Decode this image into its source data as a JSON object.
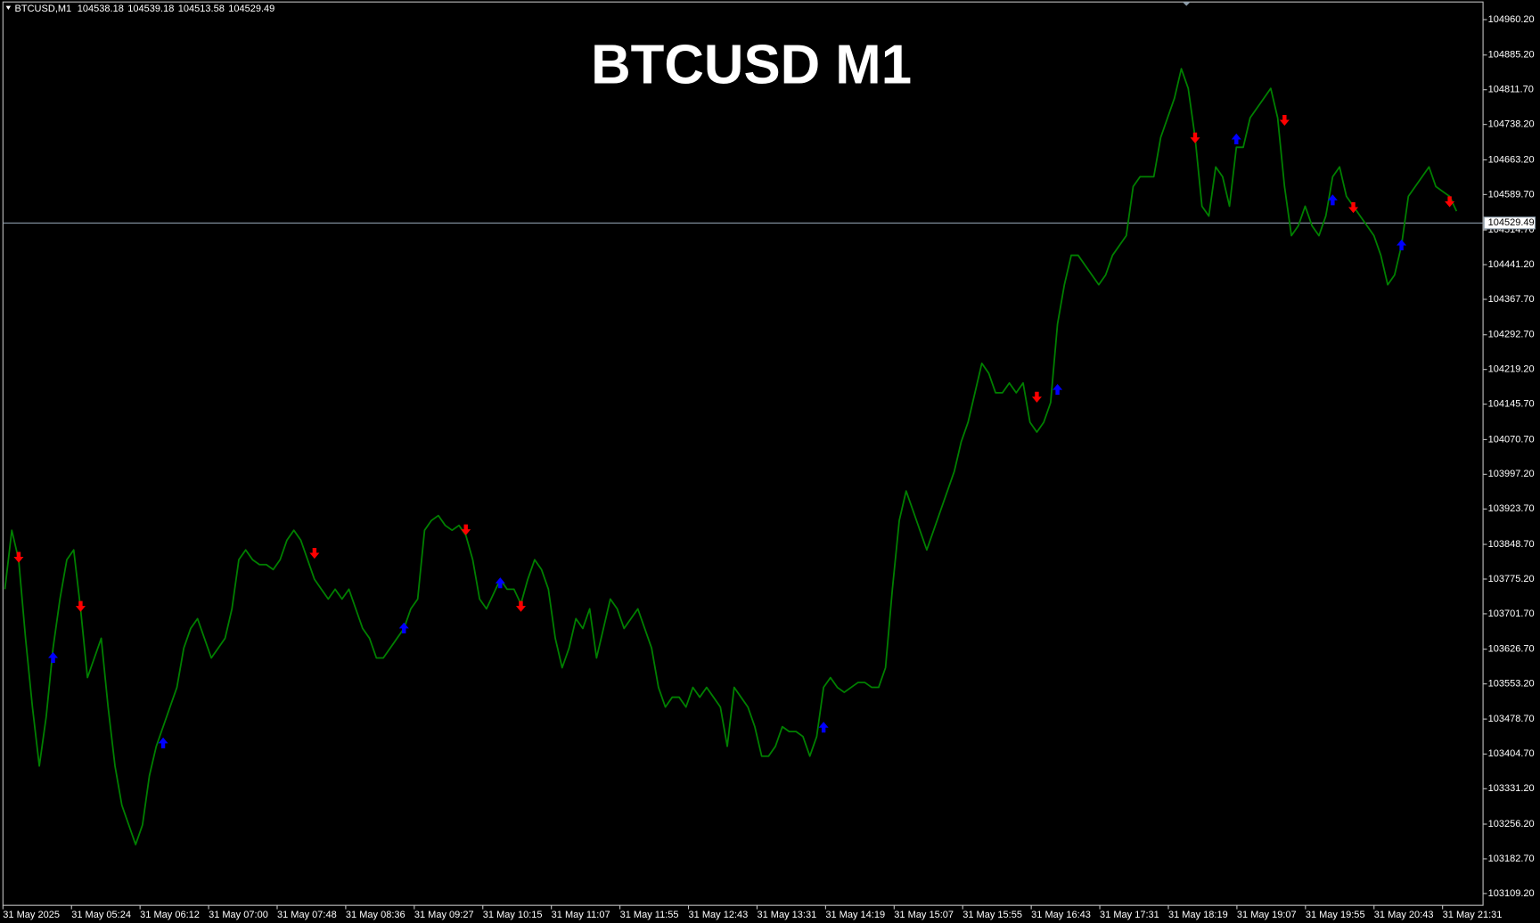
{
  "chart_data": {
    "type": "line",
    "title": "BTCUSD M1",
    "header": {
      "symbol": "BTCUSD,M1",
      "ohlc": [
        104538.18,
        104539.18,
        104513.58,
        104529.49
      ]
    },
    "last_price": 104529.49,
    "color": "#008000",
    "background": "#000000",
    "xtick_labels": [
      "31 May 2025",
      "31 May 05:24",
      "31 May 06:12",
      "31 May 07:00",
      "31 May 07:48",
      "31 May 08:36",
      "31 May 09:27",
      "31 May 10:15",
      "31 May 11:07",
      "31 May 11:55",
      "31 May 12:43",
      "31 May 13:31",
      "31 May 14:19",
      "31 May 15:07",
      "31 May 15:55",
      "31 May 16:43",
      "31 May 17:31",
      "31 May 18:19",
      "31 May 19:07",
      "31 May 19:55",
      "31 May 20:43",
      "31 May 21:31"
    ],
    "ylim": [
      103084.2,
      104997.6
    ],
    "yticks": [
      {
        "value": 104960.2,
        "label": "104960.20"
      },
      {
        "value": 104885.2,
        "label": "104885.20"
      },
      {
        "value": 104811.7,
        "label": "104811.70"
      },
      {
        "value": 104738.2,
        "label": "104738.20"
      },
      {
        "value": 104663.2,
        "label": "104663.20"
      },
      {
        "value": 104589.7,
        "label": "104589.70"
      },
      {
        "value": 104514.7,
        "label": "104514.70"
      },
      {
        "value": 104441.2,
        "label": "104441.20"
      },
      {
        "value": 104367.7,
        "label": "104367.70"
      },
      {
        "value": 104292.7,
        "label": "104292.70"
      },
      {
        "value": 104219.2,
        "label": "104219.20"
      },
      {
        "value": 104145.7,
        "label": "104145.70"
      },
      {
        "value": 104070.7,
        "label": "104070.70"
      },
      {
        "value": 103997.2,
        "label": "103997.20"
      },
      {
        "value": 103923.7,
        "label": "103923.70"
      },
      {
        "value": 103848.7,
        "label": "103848.70"
      },
      {
        "value": 103775.2,
        "label": "103775.20"
      },
      {
        "value": 103701.7,
        "label": "103701.70"
      },
      {
        "value": 103626.7,
        "label": "103626.70"
      },
      {
        "value": 103553.2,
        "label": "103553.20"
      },
      {
        "value": 103478.7,
        "label": "103478.70"
      },
      {
        "value": 103404.7,
        "label": "103404.70"
      },
      {
        "value": 103331.2,
        "label": "103331.20"
      },
      {
        "value": 103256.2,
        "label": "103256.20"
      },
      {
        "value": 103182.7,
        "label": "103182.70"
      },
      {
        "value": 103109.2,
        "label": "103109.20"
      }
    ],
    "values": [
      103753.8,
      103878.6,
      103816.2,
      103649.8,
      103504.2,
      103379.4,
      103483.4,
      103629.0,
      103733.0,
      103816.2,
      103837.0,
      103712.2,
      103566.6,
      103608.2,
      103649.8,
      103504.2,
      103379.4,
      103296.2,
      103254.6,
      103213.0,
      103254.6,
      103358.6,
      103421.0,
      103462.6,
      103504.2,
      103545.8,
      103629.0,
      103670.6,
      103691.4,
      103649.8,
      103608.2,
      103629.0,
      103649.8,
      103712.2,
      103816.2,
      103837.0,
      103816.2,
      103805.8,
      103805.8,
      103795.4,
      103816.2,
      103857.8,
      103878.6,
      103857.8,
      103816.2,
      103774.6,
      103753.8,
      103733.0,
      103753.8,
      103733.0,
      103753.8,
      103712.2,
      103670.6,
      103649.8,
      103608.2,
      103608.2,
      103629.0,
      103649.8,
      103670.6,
      103712.2,
      103733.0,
      103878.6,
      103899.4,
      103909.8,
      103889.0,
      103878.6,
      103889.0,
      103868.2,
      103816.2,
      103733.0,
      103712.2,
      103743.4,
      103774.6,
      103753.8,
      103753.8,
      103722.6,
      103774.6,
      103816.2,
      103795.4,
      103753.8,
      103649.8,
      103587.4,
      103629.0,
      103691.4,
      103670.6,
      103712.2,
      103608.2,
      103670.6,
      103733.0,
      103712.2,
      103670.6,
      103691.4,
      103712.2,
      103670.6,
      103629.0,
      103545.8,
      103504.2,
      103525.0,
      103525.0,
      103504.2,
      103545.8,
      103525.0,
      103545.8,
      103525.0,
      103504.2,
      103421.0,
      103545.8,
      103525.0,
      103504.2,
      103462.6,
      103400.2,
      103400.2,
      103421.0,
      103462.6,
      103452.2,
      103452.2,
      103441.8,
      103400.2,
      103441.8,
      103545.8,
      103566.6,
      103545.8,
      103535.4,
      103545.8,
      103556.2,
      103556.2,
      103545.8,
      103545.8,
      103587.4,
      103753.8,
      103899.4,
      103961.8,
      103920.2,
      103878.6,
      103837.0,
      103878.6,
      103920.2,
      103961.8,
      104003.4,
      104065.8,
      104107.4,
      104169.8,
      104232.2,
      104211.4,
      104169.8,
      104169.8,
      104190.6,
      104169.8,
      104190.6,
      104107.4,
      104086.6,
      104107.4,
      104149.0,
      104315.4,
      104398.6,
      104461.0,
      104461.0,
      104440.2,
      104419.4,
      104398.6,
      104419.4,
      104461.0,
      104481.8,
      104502.6,
      104606.6,
      104627.4,
      104627.4,
      104627.4,
      104710.6,
      104752.2,
      104793.8,
      104856.2,
      104814.6,
      104710.6,
      104565.0,
      104544.2,
      104648.2,
      104627.4,
      104565.0,
      104689.8,
      104689.8,
      104752.2,
      104773.0,
      104793.8,
      104814.6,
      104752.2,
      104606.6,
      104502.6,
      104523.4,
      104565.0,
      104523.4,
      104502.6,
      104544.2,
      104627.4,
      104648.2,
      104585.8,
      104565.0,
      104544.2,
      104523.4,
      104502.6,
      104461.0,
      104398.6,
      104419.4,
      104481.8,
      104585.8,
      104606.6,
      104627.4,
      104648.2,
      104606.6,
      104596.2,
      104585.8,
      104554.6
    ],
    "sell_signals": [
      {
        "index": 2,
        "price": 103822.4
      },
      {
        "index": 11,
        "price": 103718.4
      },
      {
        "index": 45,
        "price": 103830.8
      },
      {
        "index": 67,
        "price": 103880.7
      },
      {
        "index": 75,
        "price": 103718.4
      },
      {
        "index": 150,
        "price": 104161.5
      },
      {
        "index": 173,
        "price": 104710.6
      },
      {
        "index": 186,
        "price": 104748.0
      },
      {
        "index": 196,
        "price": 104562.9
      },
      {
        "index": 210,
        "price": 104575.4
      }
    ],
    "buy_signals": [
      {
        "index": 7,
        "price": 103608.2
      },
      {
        "index": 23,
        "price": 103427.2
      },
      {
        "index": 58,
        "price": 103670.6
      },
      {
        "index": 72,
        "price": 103766.3
      },
      {
        "index": 119,
        "price": 103460.5
      },
      {
        "index": 153,
        "price": 104176.0
      },
      {
        "index": 179,
        "price": 104706.4
      },
      {
        "index": 193,
        "price": 104577.5
      },
      {
        "index": 203,
        "price": 104481.8
      }
    ],
    "sell_color": "#ff0000",
    "buy_color": "#0000ff"
  }
}
